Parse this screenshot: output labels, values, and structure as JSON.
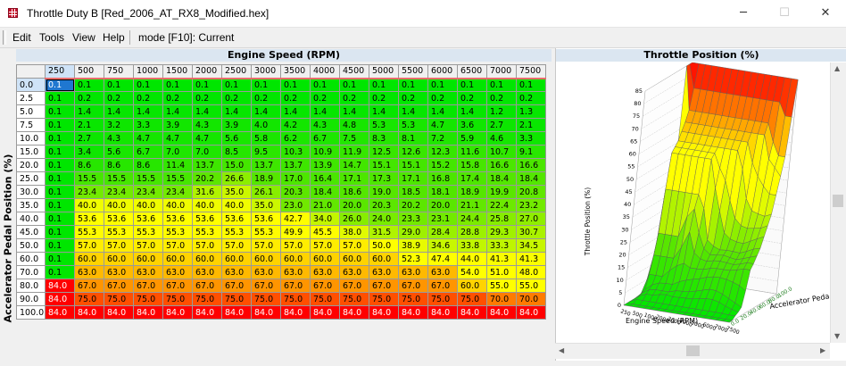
{
  "window": {
    "title": "Throttle Duty B [Red_2006_AT_RX8_Modified.hex]",
    "minimize": "─",
    "maximize": "☐",
    "close": "✕"
  },
  "menu": {
    "items": [
      "Edit",
      "Tools",
      "View",
      "Help"
    ],
    "mode": "mode [F10]: Current"
  },
  "table": {
    "title": "Engine Speed (RPM)",
    "y_title": "Accelerator Pedal Position (%)",
    "columns": [
      "250",
      "500",
      "750",
      "1000",
      "1500",
      "2000",
      "2500",
      "3000",
      "3500",
      "4000",
      "4500",
      "5000",
      "5500",
      "6000",
      "6500",
      "7000",
      "7500"
    ],
    "rows": [
      "0.0",
      "2.5",
      "5.0",
      "7.5",
      "10.0",
      "15.0",
      "20.0",
      "25.0",
      "30.0",
      "35.0",
      "40.0",
      "45.0",
      "50.0",
      "60.0",
      "70.0",
      "80.0",
      "90.0",
      "100.0"
    ],
    "cells": [
      [
        "0.1",
        "0.1",
        "0.1",
        "0.1",
        "0.1",
        "0.1",
        "0.1",
        "0.1",
        "0.1",
        "0.1",
        "0.1",
        "0.1",
        "0.1",
        "0.1",
        "0.1",
        "0.1",
        "0.1"
      ],
      [
        "0.1",
        "0.2",
        "0.2",
        "0.2",
        "0.2",
        "0.2",
        "0.2",
        "0.2",
        "0.2",
        "0.2",
        "0.2",
        "0.2",
        "0.2",
        "0.2",
        "0.2",
        "0.2",
        "0.2"
      ],
      [
        "0.1",
        "1.4",
        "1.4",
        "1.4",
        "1.4",
        "1.4",
        "1.4",
        "1.4",
        "1.4",
        "1.4",
        "1.4",
        "1.4",
        "1.4",
        "1.4",
        "1.4",
        "1.2",
        "1.3"
      ],
      [
        "0.1",
        "2.1",
        "3.2",
        "3.3",
        "3.9",
        "4.3",
        "3.9",
        "4.0",
        "4.2",
        "4.3",
        "4.8",
        "5.3",
        "5.3",
        "4.7",
        "3.6",
        "2.7",
        "2.1"
      ],
      [
        "0.1",
        "2.7",
        "4.3",
        "4.7",
        "4.7",
        "4.7",
        "5.6",
        "5.8",
        "6.2",
        "6.7",
        "7.5",
        "8.3",
        "8.1",
        "7.2",
        "5.9",
        "4.6",
        "3.3"
      ],
      [
        "0.1",
        "3.4",
        "5.6",
        "6.7",
        "7.0",
        "7.0",
        "8.5",
        "9.5",
        "10.3",
        "10.9",
        "11.9",
        "12.5",
        "12.6",
        "12.3",
        "11.6",
        "10.7",
        "9.1"
      ],
      [
        "0.1",
        "8.6",
        "8.6",
        "8.6",
        "11.4",
        "13.7",
        "15.0",
        "13.7",
        "13.7",
        "13.9",
        "14.7",
        "15.1",
        "15.1",
        "15.2",
        "15.8",
        "16.6",
        "16.6"
      ],
      [
        "0.1",
        "15.5",
        "15.5",
        "15.5",
        "15.5",
        "20.2",
        "26.6",
        "18.9",
        "17.0",
        "16.4",
        "17.1",
        "17.3",
        "17.1",
        "16.8",
        "17.4",
        "18.4",
        "18.4"
      ],
      [
        "0.1",
        "23.4",
        "23.4",
        "23.4",
        "23.4",
        "31.6",
        "35.0",
        "26.1",
        "20.3",
        "18.4",
        "18.6",
        "19.0",
        "18.5",
        "18.1",
        "18.9",
        "19.9",
        "20.8"
      ],
      [
        "0.1",
        "40.0",
        "40.0",
        "40.0",
        "40.0",
        "40.0",
        "40.0",
        "35.0",
        "23.0",
        "21.0",
        "20.0",
        "20.3",
        "20.2",
        "20.0",
        "21.1",
        "22.4",
        "23.2"
      ],
      [
        "0.1",
        "53.6",
        "53.6",
        "53.6",
        "53.6",
        "53.6",
        "53.6",
        "53.6",
        "42.7",
        "34.0",
        "26.0",
        "24.0",
        "23.3",
        "23.1",
        "24.4",
        "25.8",
        "27.0"
      ],
      [
        "0.1",
        "55.3",
        "55.3",
        "55.3",
        "55.3",
        "55.3",
        "55.3",
        "55.3",
        "49.9",
        "45.5",
        "38.0",
        "31.5",
        "29.0",
        "28.4",
        "28.8",
        "29.3",
        "30.7"
      ],
      [
        "0.1",
        "57.0",
        "57.0",
        "57.0",
        "57.0",
        "57.0",
        "57.0",
        "57.0",
        "57.0",
        "57.0",
        "57.0",
        "50.0",
        "38.9",
        "34.6",
        "33.8",
        "33.3",
        "34.5"
      ],
      [
        "0.1",
        "60.0",
        "60.0",
        "60.0",
        "60.0",
        "60.0",
        "60.0",
        "60.0",
        "60.0",
        "60.0",
        "60.0",
        "60.0",
        "52.3",
        "47.4",
        "44.0",
        "41.3",
        "41.3"
      ],
      [
        "0.1",
        "63.0",
        "63.0",
        "63.0",
        "63.0",
        "63.0",
        "63.0",
        "63.0",
        "63.0",
        "63.0",
        "63.0",
        "63.0",
        "63.0",
        "63.0",
        "54.0",
        "51.0",
        "48.0"
      ],
      [
        "84.0",
        "67.0",
        "67.0",
        "67.0",
        "67.0",
        "67.0",
        "67.0",
        "67.0",
        "67.0",
        "67.0",
        "67.0",
        "67.0",
        "67.0",
        "67.0",
        "60.0",
        "55.0",
        "55.0"
      ],
      [
        "84.0",
        "75.0",
        "75.0",
        "75.0",
        "75.0",
        "75.0",
        "75.0",
        "75.0",
        "75.0",
        "75.0",
        "75.0",
        "75.0",
        "75.0",
        "75.0",
        "75.0",
        "70.0",
        "70.0"
      ],
      [
        "84.0",
        "84.0",
        "84.0",
        "84.0",
        "84.0",
        "84.0",
        "84.0",
        "84.0",
        "84.0",
        "84.0",
        "84.0",
        "84.0",
        "84.0",
        "84.0",
        "84.0",
        "84.0",
        "84.0"
      ]
    ],
    "selected_cell": "0.1"
  },
  "plot": {
    "title": "Throttle Position (%)",
    "z_label": "Throttle Position (%)",
    "x_label": "Engine Speed (RPM)",
    "y_label": "Accelerator Pedal",
    "z_ticks": [
      "0",
      "5",
      "10",
      "15",
      "20",
      "25",
      "30",
      "35",
      "40",
      "45",
      "50",
      "55",
      "60",
      "65",
      "70",
      "75",
      "80",
      "85"
    ],
    "x_ticks": [
      "250",
      "500",
      "1000",
      "2000",
      "3000",
      "4000",
      "5000",
      "6000",
      "7000",
      "7500"
    ],
    "y_ticks": [
      "0.0",
      "20.0",
      "40.0",
      "60.0",
      "80.0",
      "100.0"
    ]
  },
  "colors": {
    "low": "#00e000",
    "mid": "#ffff00",
    "high": "#ff0000",
    "header": "#dbe6f1"
  }
}
